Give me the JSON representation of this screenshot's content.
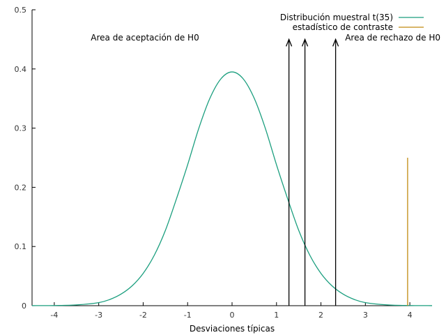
{
  "chart_data": {
    "type": "line",
    "xlabel": "Desviaciones típicas",
    "ylabel": "",
    "title": "",
    "xlim": [
      -4.5,
      4.5
    ],
    "ylim": [
      0,
      0.5
    ],
    "xticks": [
      -4,
      -3,
      -2,
      -1,
      0,
      1,
      2,
      3,
      4
    ],
    "yticks": [
      0,
      0.1,
      0.2,
      0.3,
      0.4,
      0.5
    ],
    "xtick_labels": [
      "-4",
      "-3",
      "-2",
      "-1",
      "0",
      "1",
      "2",
      "3",
      "4"
    ],
    "ytick_labels": [
      "0",
      "0.1",
      "0.2",
      "0.3",
      "0.4",
      "0.5"
    ],
    "grid": false,
    "legend_position": "top-right",
    "series": [
      {
        "name": "Distribución muestral t(35)",
        "kind": "curve",
        "color": "#1a9e7e",
        "x": [
          -4.5,
          -4.0,
          -3.5,
          -3.0,
          -2.75,
          -2.5,
          -2.25,
          -2.0,
          -1.75,
          -1.5,
          -1.25,
          -1.0,
          -0.75,
          -0.5,
          -0.25,
          0.0,
          0.25,
          0.5,
          0.75,
          1.0,
          1.25,
          1.5,
          1.75,
          2.0,
          2.25,
          2.5,
          2.75,
          3.0,
          3.5,
          4.0,
          4.5
        ],
        "y": [
          0.0001,
          0.0003,
          0.0013,
          0.0052,
          0.0105,
          0.0195,
          0.0335,
          0.0546,
          0.0852,
          0.1272,
          0.1808,
          0.238,
          0.2993,
          0.3502,
          0.3834,
          0.395,
          0.3834,
          0.3502,
          0.2993,
          0.238,
          0.1808,
          0.1272,
          0.0852,
          0.0546,
          0.0335,
          0.0195,
          0.0105,
          0.0052,
          0.0013,
          0.0003,
          0.0001
        ]
      },
      {
        "name": "estadístico de contraste",
        "kind": "vertical-line",
        "color": "#c08a10",
        "x": 3.95,
        "y": [
          0,
          0.25
        ]
      }
    ],
    "arrows": [
      {
        "x": 1.28,
        "y_from": 0,
        "y_to": 0.45,
        "color": "#000000"
      },
      {
        "x": 1.64,
        "y_from": 0,
        "y_to": 0.45,
        "color": "#000000"
      },
      {
        "x": 2.33,
        "y_from": 0,
        "y_to": 0.45,
        "color": "#000000"
      }
    ],
    "annotations": [
      {
        "text": "Area de aceptación de H0"
      },
      {
        "text": "Area de rechazo de H0"
      }
    ]
  }
}
